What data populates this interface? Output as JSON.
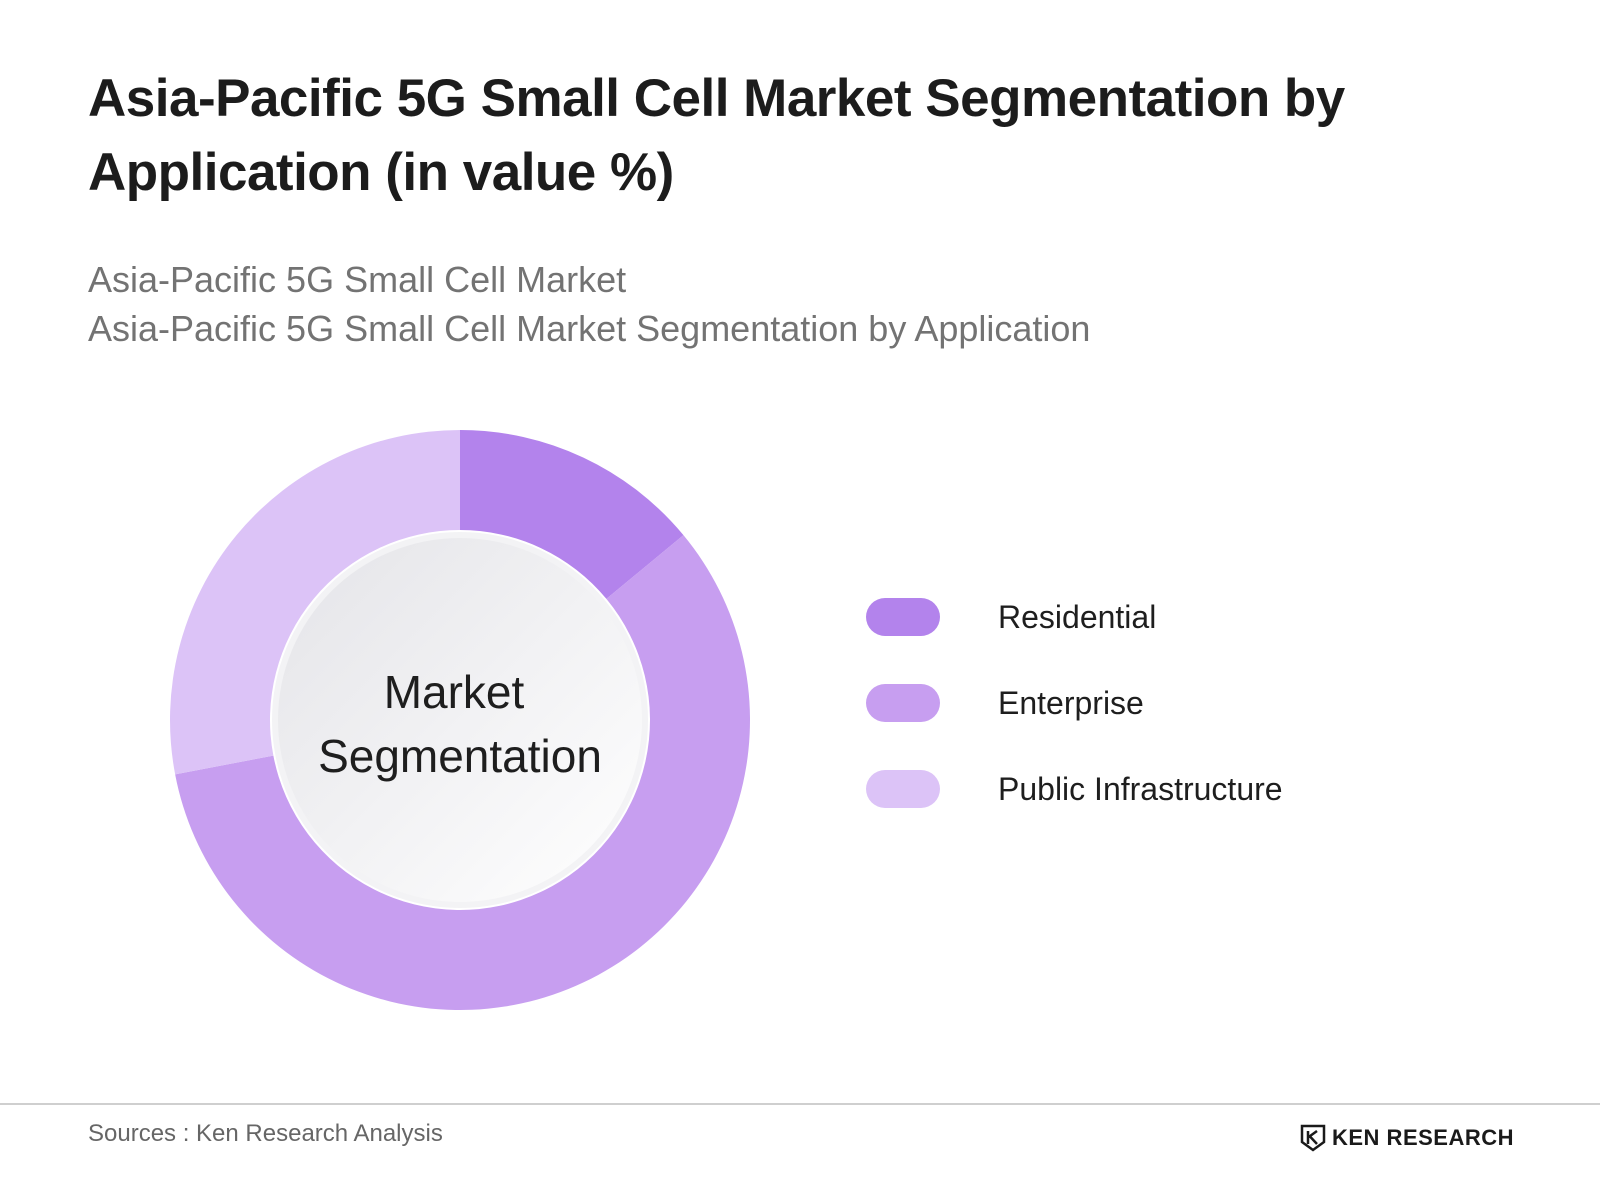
{
  "title": "Asia-Pacific 5G Small Cell Market Segmentation by Application (in value %)",
  "subtitle_line1": "Asia-Pacific 5G Small Cell Market",
  "subtitle_line2": "Asia-Pacific 5G Small Cell Market Segmentation by Application",
  "chart_data": {
    "type": "pie",
    "center_label_line1": "Market",
    "center_label_line2": "Segmentation",
    "categories": [
      "Residential",
      "Enterprise",
      "Public Infrastructure"
    ],
    "values": [
      14,
      58,
      28
    ],
    "colors": [
      "#b383ec",
      "#c79ef0",
      "#dcc3f7"
    ],
    "legend_position": "right"
  },
  "footer": {
    "source": "Sources : Ken Research Analysis",
    "brand": "KEN RESEARCH",
    "brand_icon": "ken-research-logo-icon"
  }
}
